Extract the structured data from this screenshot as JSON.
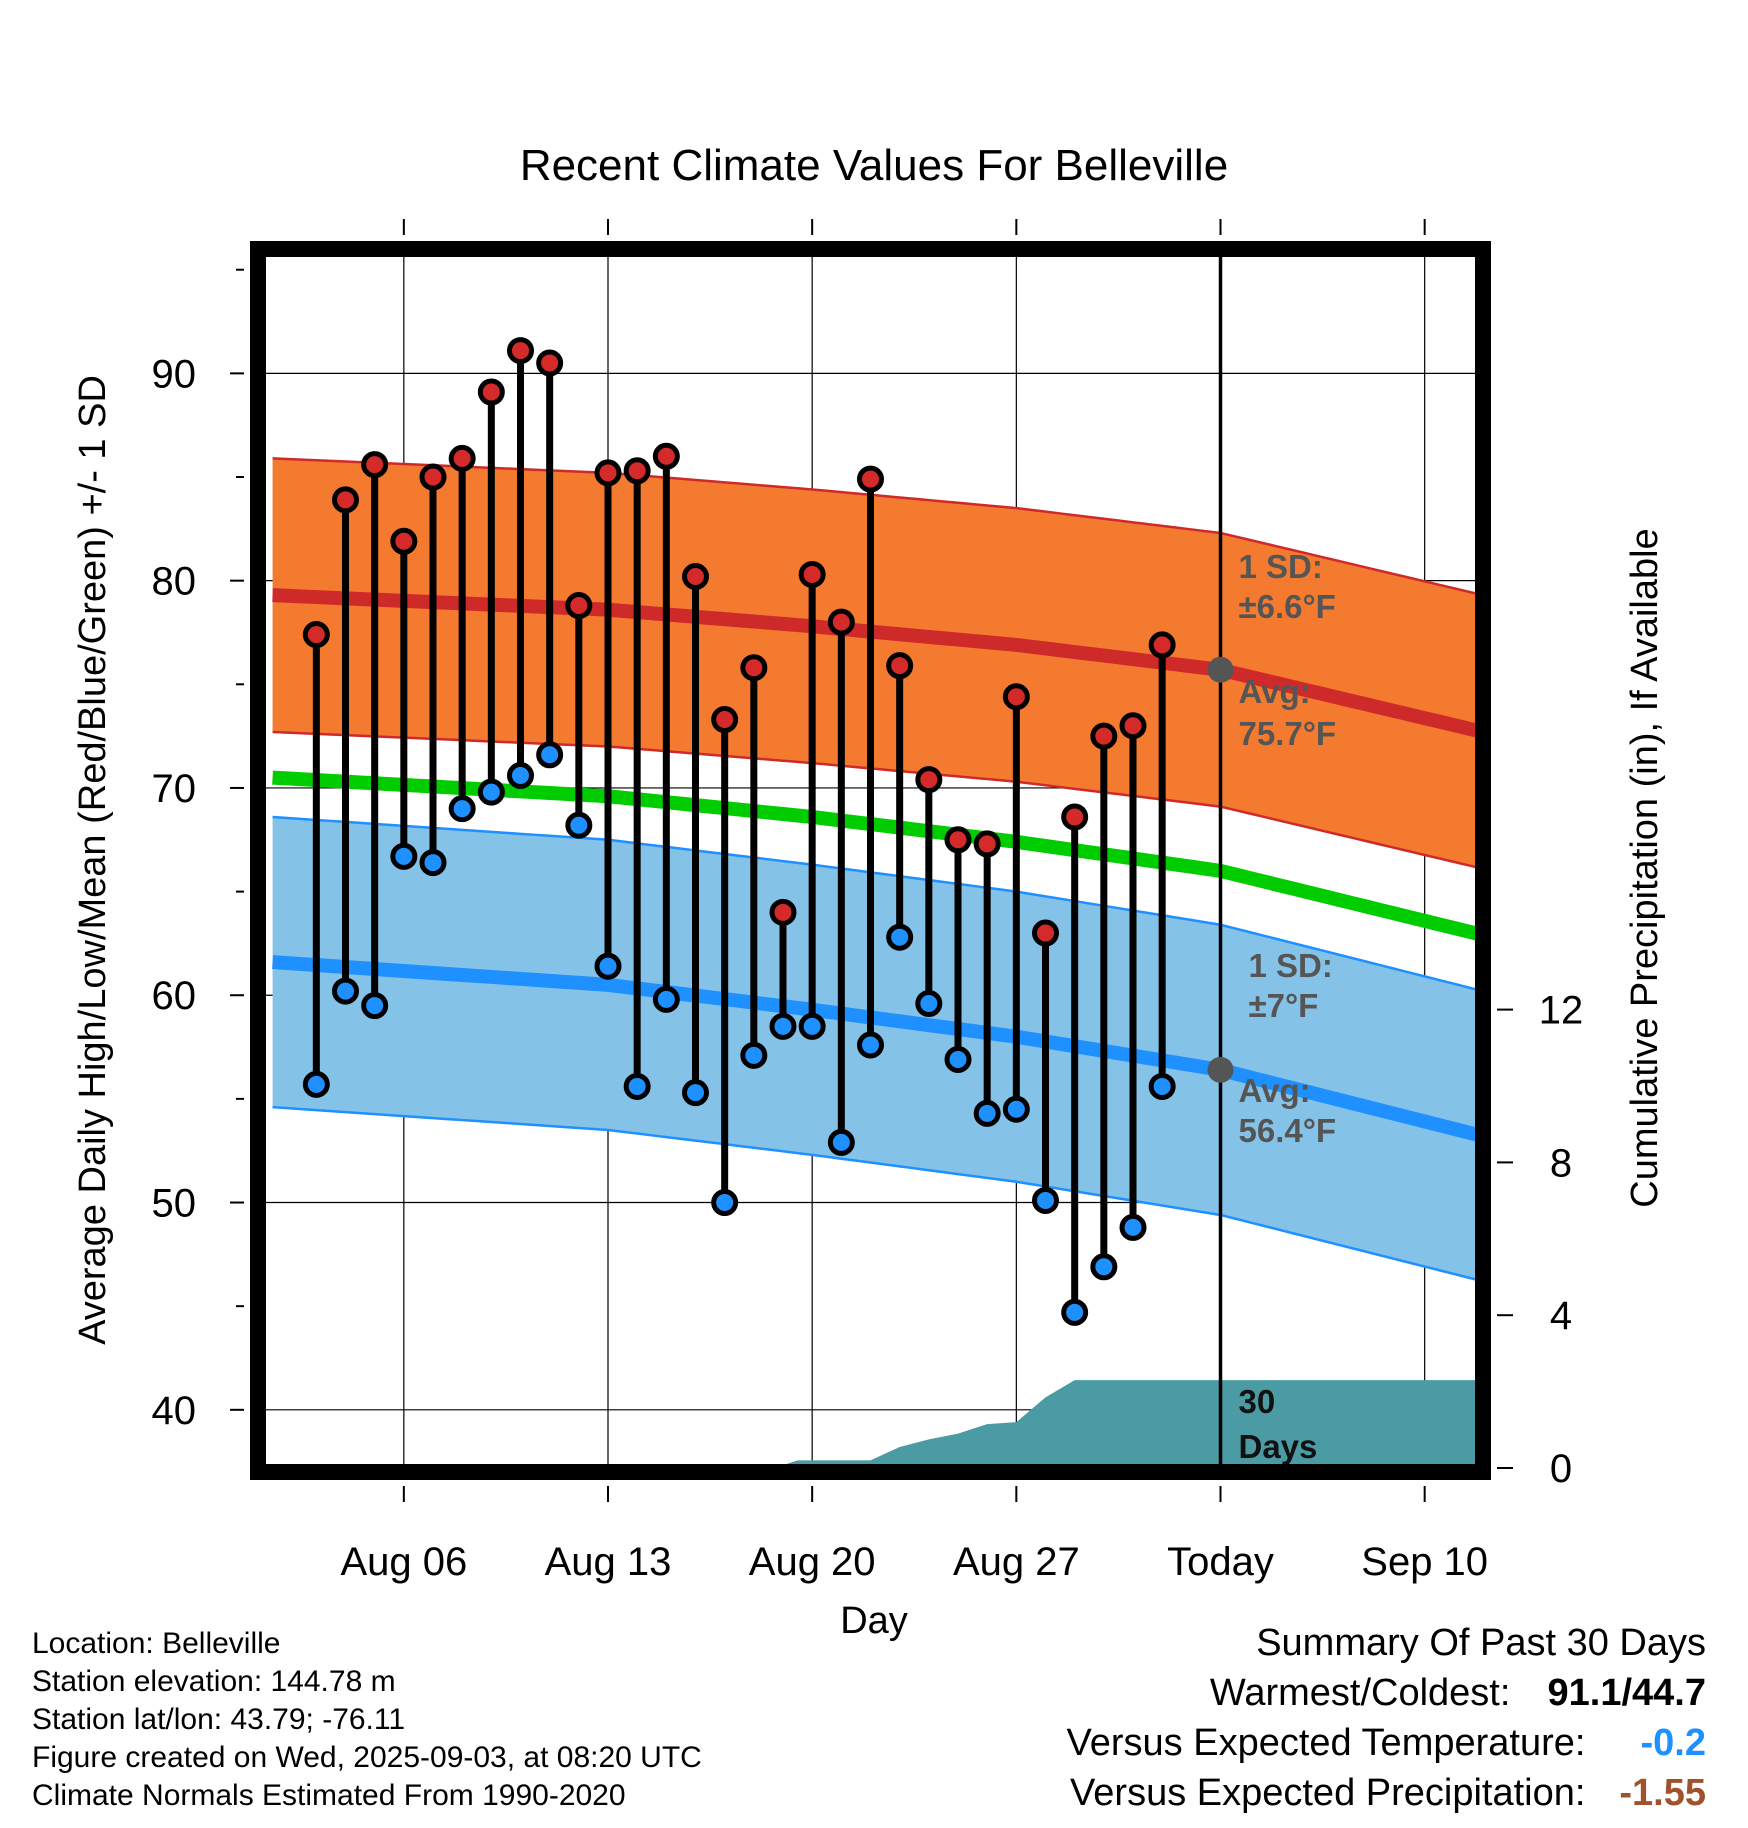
{
  "chart_data": {
    "type": "line",
    "title": "Recent Climate Values For Belleville",
    "xlabel": "Day",
    "ylabel_left": "Average Daily High/Low/Mean (Red/Blue/Green) +/- 1 SD",
    "ylabel_right": "Cumulative Precipitation (in), If Available",
    "ylim": [
      37,
      96
    ],
    "ylim_right": [
      0,
      30
    ],
    "yticks_left": [
      40,
      50,
      60,
      70,
      80,
      90
    ],
    "yticks_right": [
      0,
      4,
      8,
      12
    ],
    "x_day_range": [
      1,
      43
    ],
    "xticks": [
      {
        "day": 6,
        "label": "Aug 06"
      },
      {
        "day": 13,
        "label": "Aug 13"
      },
      {
        "day": 20,
        "label": "Aug 20"
      },
      {
        "day": 27,
        "label": "Aug 27"
      },
      {
        "day": 34,
        "label": "Today"
      },
      {
        "day": 41,
        "label": "Sep 10"
      }
    ],
    "today_day": 34,
    "grid": true,
    "colors": {
      "high_band": "#f47a30",
      "high_line": "#cf2a2a",
      "low_band": "#85c2e8",
      "low_line": "#1e90ff",
      "mean_line": "#00cc00",
      "precip": "#4a9ba3",
      "high_dot": "#d42a2a",
      "low_dot": "#1e90ff",
      "marker_today": "#555555"
    },
    "normal_high": {
      "days": [
        1.5,
        13,
        20,
        27,
        34,
        43
      ],
      "avg": [
        79.3,
        78.6,
        77.8,
        76.9,
        75.7,
        72.7
      ],
      "sd": 6.6
    },
    "normal_low": {
      "days": [
        1.5,
        13,
        20,
        27,
        34,
        43
      ],
      "avg": [
        61.6,
        60.5,
        59.3,
        58.0,
        56.4,
        53.2
      ],
      "sd": 7
    },
    "normal_mean": {
      "days": [
        1.5,
        13,
        20,
        27,
        34,
        43
      ],
      "values": [
        70.5,
        69.6,
        68.6,
        67.4,
        66.0,
        62.9
      ]
    },
    "observed": {
      "days": [
        3,
        4,
        5,
        6,
        7,
        8,
        9,
        10,
        11,
        12,
        13,
        14,
        15,
        16,
        17,
        18,
        19,
        20,
        21,
        22,
        23,
        24,
        25,
        26,
        27,
        28,
        29,
        30,
        31,
        32,
        33
      ],
      "highs": [
        77.4,
        83.9,
        85.6,
        81.9,
        85.0,
        85.9,
        89.1,
        91.1,
        90.5,
        78.8,
        85.2,
        85.3,
        86.0,
        80.2,
        73.3,
        75.8,
        64.0,
        80.3,
        78.0,
        84.9,
        75.9,
        70.4,
        67.5,
        67.3,
        74.4,
        63.0,
        68.6,
        72.5,
        73.0,
        76.9,
        null
      ],
      "lows": [
        55.7,
        60.2,
        59.5,
        66.7,
        66.4,
        69.0,
        69.8,
        70.6,
        71.6,
        68.2,
        61.4,
        55.6,
        59.8,
        55.3,
        50.0,
        57.1,
        58.5,
        58.5,
        52.9,
        57.6,
        62.8,
        59.6,
        56.9,
        54.3,
        54.5,
        50.1,
        44.7,
        46.9,
        48.8,
        55.6,
        null
      ]
    },
    "precip": {
      "days": [
        18.7,
        19.5,
        21,
        22,
        23,
        24,
        25,
        26,
        27,
        28,
        29,
        30,
        43
      ],
      "values": [
        0,
        0.2,
        0.2,
        0.2,
        0.55,
        0.75,
        0.9,
        1.15,
        1.2,
        1.85,
        2.3,
        2.3,
        2.3
      ]
    },
    "annotations": [
      {
        "line1": "1 SD:",
        "line2": "±6.6°F"
      },
      {
        "line1": "Avg:",
        "line2": "75.7°F"
      },
      {
        "line1": "1 SD:",
        "line2": "±7°F"
      },
      {
        "line1": "Avg:",
        "line2": "56.4°F"
      },
      {
        "line1": "30",
        "line2": "Days"
      }
    ]
  },
  "footer": {
    "location": "Location: Belleville",
    "elevation": "Station elevation: 144.78 m",
    "latlon": "Station lat/lon: 43.79; -76.11",
    "created": "Figure created on Wed, 2025-09-03, at 08:20 UTC",
    "normals": "Climate Normals Estimated From 1990-2020"
  },
  "summary": {
    "title": "Summary Of Past 30 Days",
    "warm_cold_label": "Warmest/Coldest:",
    "warm_cold_value": "91.1/44.7",
    "temp_label": "Versus Expected Temperature:",
    "temp_value": "-0.2",
    "precip_label": "Versus Expected Precipitation:",
    "precip_value": "-1.55"
  }
}
